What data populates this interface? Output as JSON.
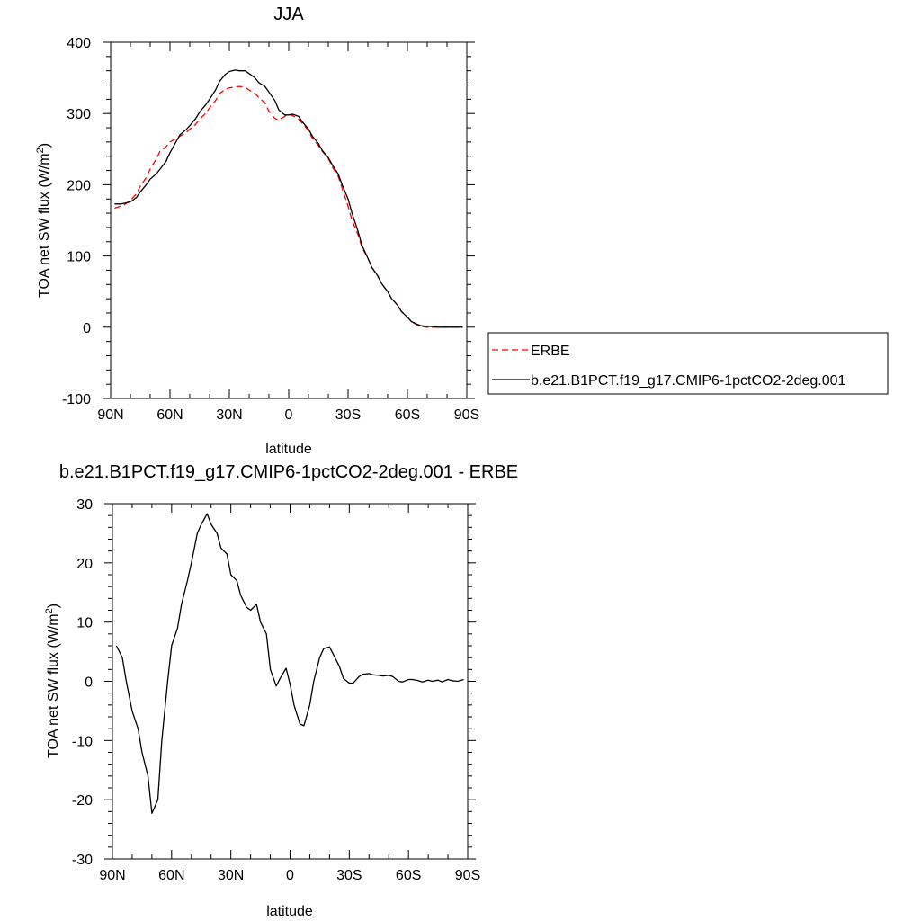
{
  "colors": {
    "model": "#000000",
    "obs": "#ff0000",
    "axes": "#000000",
    "background": "#ffffff"
  },
  "chart_data": [
    {
      "type": "line",
      "title": "JJA",
      "xlabel": "latitude",
      "ylabel_main": "TOA net SW flux (W/m",
      "ylabel_sup": "2",
      "ylabel_close": ")",
      "xlim": [
        -90,
        90
      ],
      "ylim": [
        -100,
        400
      ],
      "x_direction": "90N (left) to 90S (right); negative = north, positive = south",
      "xticks": [
        -90,
        -60,
        -30,
        0,
        30,
        60,
        90
      ],
      "xticklabels": [
        "90N",
        "60N",
        "30N",
        "0",
        "30S",
        "60S",
        "90S"
      ],
      "yticks": [
        -100,
        0,
        100,
        200,
        300,
        400
      ],
      "yticklabels": [
        "-100",
        "0",
        "100",
        "200",
        "300",
        "400"
      ],
      "legend_position": "right of plot",
      "legend": [
        {
          "label": "ERBE",
          "style": "dashed",
          "color": "#ff0000"
        },
        {
          "label": "b.e21.B1PCT.f19_g17.CMIP6-1pctCO2-2deg.001",
          "style": "solid",
          "color": "#000000"
        }
      ],
      "series": [
        {
          "name": "ERBE",
          "style": "dashed",
          "color": "#ff0000",
          "x": [
            -88,
            -85,
            -83,
            -80,
            -77,
            -75,
            -72,
            -70,
            -67,
            -65,
            -62,
            -60,
            -57,
            -55,
            -52,
            -50,
            -47,
            -45,
            -42,
            -40,
            -37,
            -35,
            -32,
            -30,
            -27,
            -25,
            -22,
            -20,
            -17,
            -15,
            -12,
            -10,
            -7,
            -5,
            -2,
            0,
            2,
            5,
            7,
            10,
            12,
            15,
            17,
            20,
            22,
            25,
            27,
            30,
            32,
            35,
            37,
            40,
            42,
            45,
            47,
            50,
            52,
            55,
            57,
            60,
            62,
            65,
            67,
            70,
            72,
            75,
            77,
            80,
            82,
            85,
            88
          ],
          "y": [
            167,
            170,
            172,
            178,
            187,
            198,
            210,
            222,
            236,
            247,
            253,
            260,
            265,
            268,
            273,
            278,
            285,
            292,
            300,
            308,
            318,
            328,
            334,
            336,
            337,
            338,
            337,
            333,
            328,
            322,
            315,
            303,
            293,
            291,
            296,
            299,
            297,
            292,
            286,
            276,
            265,
            255,
            247,
            237,
            225,
            212,
            195,
            170,
            150,
            130,
            112,
            97,
            84,
            72,
            61,
            50,
            40,
            31,
            22,
            14,
            8,
            3,
            1,
            0,
            0,
            0,
            0,
            0,
            0,
            0,
            0
          ]
        },
        {
          "name": "b.e21.B1PCT.f19_g17.CMIP6-1pctCO2-2deg.001",
          "style": "solid",
          "color": "#000000",
          "x": [
            -88,
            -85,
            -83,
            -80,
            -77,
            -75,
            -72,
            -70,
            -67,
            -65,
            -62,
            -60,
            -57,
            -55,
            -52,
            -50,
            -47,
            -45,
            -42,
            -40,
            -37,
            -35,
            -32,
            -30,
            -27,
            -25,
            -22,
            -20,
            -17,
            -15,
            -12,
            -10,
            -7,
            -5,
            -2,
            0,
            2,
            5,
            7,
            10,
            12,
            15,
            17,
            20,
            22,
            25,
            27,
            30,
            32,
            35,
            37,
            40,
            42,
            45,
            47,
            50,
            52,
            55,
            57,
            60,
            62,
            65,
            67,
            70,
            72,
            75,
            77,
            80,
            82,
            85,
            88
          ],
          "y": [
            173,
            173,
            174,
            176,
            182,
            190,
            200,
            208,
            215,
            222,
            233,
            245,
            260,
            270,
            277,
            283,
            293,
            302,
            312,
            320,
            333,
            345,
            355,
            359,
            361,
            360,
            360,
            356,
            350,
            343,
            338,
            330,
            318,
            305,
            298,
            298,
            299,
            296,
            288,
            278,
            268,
            258,
            248,
            238,
            228,
            215,
            200,
            180,
            160,
            135,
            115,
            97,
            84,
            72,
            61,
            50,
            40,
            31,
            22,
            14,
            8,
            4,
            2,
            1,
            1,
            0,
            0,
            0,
            0,
            0,
            0
          ]
        }
      ]
    },
    {
      "type": "line",
      "title": "b.e21.B1PCT.f19_g17.CMIP6-1pctCO2-2deg.001 - ERBE",
      "xlabel": "latitude",
      "ylabel_main": "TOA net SW flux (W/m",
      "ylabel_sup": "2",
      "ylabel_close": ")",
      "xlim": [
        -90,
        90
      ],
      "ylim": [
        -30,
        30
      ],
      "xticks": [
        -90,
        -60,
        -30,
        0,
        30,
        60,
        90
      ],
      "xticklabels": [
        "90N",
        "60N",
        "30N",
        "0",
        "30S",
        "60S",
        "90S"
      ],
      "yticks": [
        -30,
        -20,
        -10,
        0,
        10,
        20,
        30
      ],
      "yticklabels": [
        "-30",
        "-20",
        "-10",
        "0",
        "10",
        "20",
        "30"
      ],
      "series": [
        {
          "name": "",
          "style": "solid",
          "color": "#000000",
          "x": [
            -88,
            -85,
            -83,
            -80,
            -77,
            -75,
            -72,
            -70,
            -67,
            -65,
            -62,
            -60,
            -57,
            -55,
            -52,
            -50,
            -47,
            -45,
            -42,
            -40,
            -37,
            -35,
            -32,
            -30,
            -27,
            -25,
            -22,
            -20,
            -17,
            -15,
            -12,
            -10,
            -7,
            -5,
            -2,
            0,
            2,
            5,
            7,
            10,
            12,
            15,
            17,
            20,
            22,
            25,
            27,
            30,
            32,
            35,
            37,
            40,
            42,
            45,
            47,
            50,
            52,
            55,
            57,
            60,
            62,
            65,
            67,
            70,
            72,
            75,
            77,
            80,
            82,
            85,
            88
          ],
          "y": [
            6,
            4,
            0,
            -5,
            -8,
            -12,
            -16,
            -22.3,
            -20,
            -10,
            0,
            6,
            9,
            13,
            17,
            20,
            25,
            26.5,
            28.3,
            26.5,
            25,
            22.5,
            21.5,
            18,
            17,
            14.5,
            12.5,
            12,
            13,
            10,
            8,
            2,
            -0.8,
            0.5,
            2.2,
            -0.5,
            -4,
            -7.2,
            -7.5,
            -4,
            0,
            4,
            5.5,
            5.8,
            4.5,
            2.5,
            0.5,
            -0.3,
            -0.3,
            0.8,
            1.2,
            1.3,
            1.1,
            1.0,
            0.9,
            1.0,
            0.8,
            0,
            -0.1,
            0.3,
            0.3,
            0.1,
            -0.1,
            0.2,
            0,
            0.2,
            -0.1,
            0.3,
            0.1,
            0,
            0.3
          ]
        }
      ]
    }
  ]
}
